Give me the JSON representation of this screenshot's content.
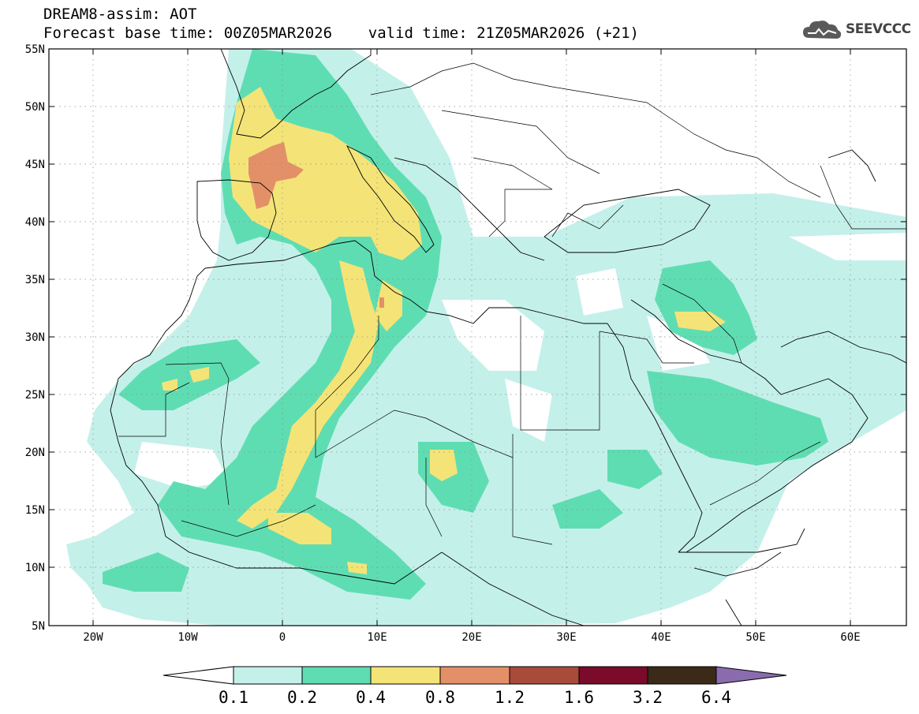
{
  "title": {
    "line1": "DREAM8-assim: AOT",
    "line2": "Forecast base time: 00Z05MAR2026    valid time: 21Z05MAR2026 (+21)"
  },
  "logo": {
    "text": "SEEVCCC",
    "icon": "cloud-icon",
    "color": "#555555"
  },
  "map": {
    "variable": "AOT",
    "lon_range": [
      -25,
      65
    ],
    "lat_range": [
      5,
      55
    ],
    "lat_ticks": [
      "55N",
      "50N",
      "45N",
      "40N",
      "35N",
      "30N",
      "25N",
      "20N",
      "15N",
      "10N",
      "5N"
    ],
    "lon_ticks": [
      "20W",
      "10W",
      "0",
      "10E",
      "20E",
      "30E",
      "40E",
      "50E",
      "60E"
    ],
    "grid": true
  },
  "colorbar": {
    "labels": [
      "0.1",
      "0.2",
      "0.4",
      "0.8",
      "1.2",
      "1.6",
      "3.2",
      "6.4"
    ],
    "colors": [
      "#ffffff",
      "#c4f0ea",
      "#5fddb2",
      "#f4e478",
      "#e39068",
      "#a84b3a",
      "#7a0b2a",
      "#3a2a17",
      "#8a6cae"
    ]
  }
}
